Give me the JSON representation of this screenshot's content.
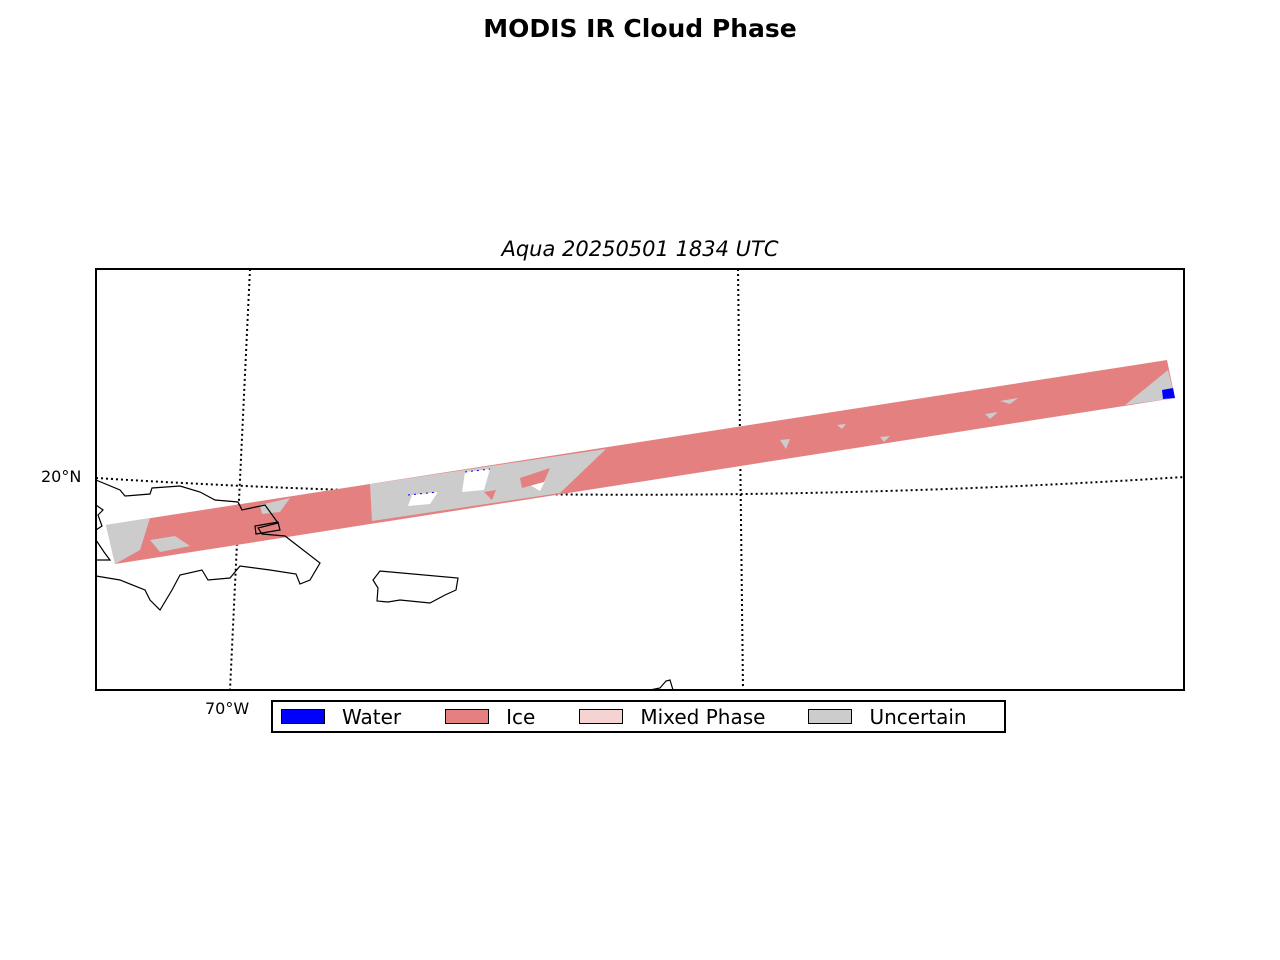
{
  "title": "MODIS IR Cloud Phase",
  "subtitle": "Aqua 20250501 1834 UTC",
  "map": {
    "lat_labels": [
      "20°N"
    ],
    "lon_labels": [
      "70°W"
    ]
  },
  "legend": [
    {
      "label": "Water",
      "color": "#0000ff"
    },
    {
      "label": "Ice",
      "color": "#e58080"
    },
    {
      "label": "Mixed Phase",
      "color": "#f5d3d3"
    },
    {
      "label": "Uncertain",
      "color": "#cccccc"
    }
  ]
}
